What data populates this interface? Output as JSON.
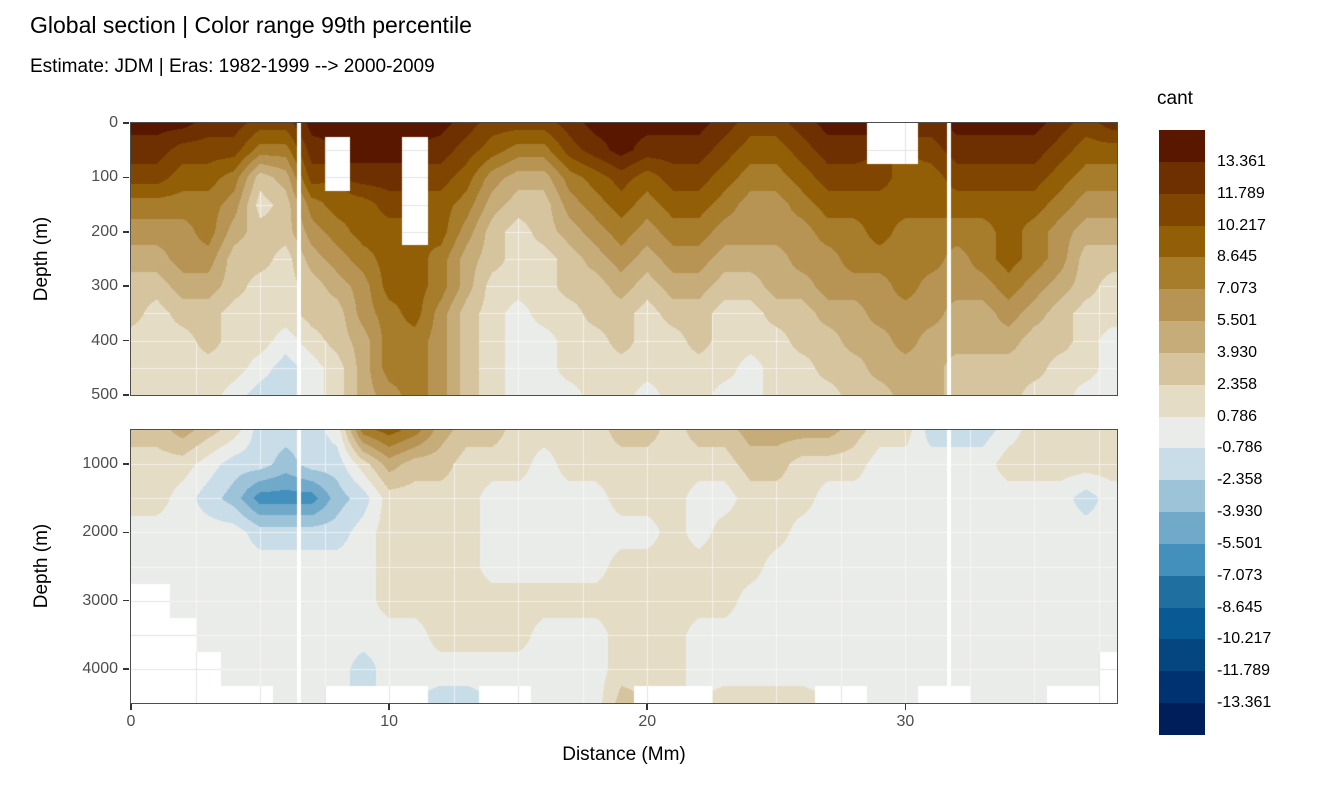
{
  "header": {
    "title": "Global section | Color range 99th percentile",
    "subtitle": "Estimate: JDM  | Eras: 1982-1999 --> 2000-2009"
  },
  "chart_data": {
    "type": "heatmap",
    "title": "Global section | Color range 99th percentile",
    "subtitle": "Estimate: JDM  | Eras: 1982-1999 --> 2000-2009",
    "xlabel": "Distance (Mm)",
    "ylabel": "Depth (m)",
    "x_range": [
      0,
      38.2
    ],
    "x_ticks": [
      0,
      10,
      20,
      30
    ],
    "x_grid_lines": [
      2.5,
      5,
      7.5,
      10,
      12.5,
      15,
      17.5,
      20,
      22.5,
      25,
      27.5,
      30,
      32.5,
      35,
      37.5
    ],
    "section_breaks_mm": [
      6.5,
      31.7
    ],
    "legend": {
      "title": "cant",
      "labels_top_down": [
        "13.361",
        "11.789",
        "10.217",
        "8.645",
        "7.073",
        "5.501",
        "3.930",
        "2.358",
        "0.786",
        "-0.786",
        "-2.358",
        "-3.930",
        "-5.501",
        "-7.073",
        "-8.645",
        "-10.217",
        "-11.789",
        "-13.361"
      ],
      "breaks_asc": [
        -13.361,
        -11.789,
        -10.217,
        -8.645,
        -7.073,
        -5.501,
        -3.93,
        -2.358,
        -0.786,
        0.786,
        2.358,
        3.93,
        5.501,
        7.073,
        8.645,
        10.217,
        11.789,
        13.361
      ],
      "colors_asc": [
        "#001E5A",
        "#003170",
        "#054580",
        "#075A94",
        "#1F6FA0",
        "#4390BC",
        "#70A9C9",
        "#9DC3D9",
        "#C9DDE8",
        "#EAECE9",
        "#E5DCC6",
        "#D5C49E",
        "#C6AC79",
        "#B79454",
        "#A77C2B",
        "#925F06",
        "#804500",
        "#6F3000",
        "#5A1700"
      ]
    },
    "colors": {
      "missing": "#FFFFFF",
      "grid_on_missing": "#E4E4E4",
      "panel_border": "#4d4d4d",
      "tick_text": "#4d4d4d",
      "section_break": "#FFFFFF"
    },
    "panels": [
      {
        "name": "upper",
        "depth_range": [
          0,
          500
        ],
        "depth_ticks": [
          0,
          100,
          200,
          300,
          400,
          500
        ],
        "depth_grid_lines": [
          50,
          100,
          150,
          200,
          250,
          300,
          350,
          400,
          450
        ],
        "x_start": 0,
        "x_step": 1,
        "depth_step": 50,
        "values": [
          [
            14,
            14,
            14,
            12.6,
            12.6,
            11,
            11,
            14,
            14,
            14,
            14,
            14,
            14,
            12.6,
            11,
            11,
            11,
            12.6,
            14,
            14,
            14,
            14,
            14,
            12.6,
            11,
            11,
            12.6,
            14,
            14,
            null,
            null,
            12.6,
            14,
            14,
            14,
            14,
            12.6,
            11,
            12.6
          ],
          [
            12.6,
            12.6,
            11,
            11,
            11,
            7.9,
            7.9,
            12.6,
            null,
            14,
            14,
            null,
            12.6,
            11,
            9.4,
            7.9,
            7.9,
            11,
            12.6,
            14,
            12.6,
            12.6,
            12.6,
            11,
            9.4,
            9.4,
            11,
            12.6,
            12.6,
            null,
            null,
            11,
            12.6,
            12.6,
            12.6,
            12.6,
            11,
            9.4,
            9.4
          ],
          [
            11,
            11,
            9.4,
            9.4,
            7.9,
            3.1,
            4.7,
            11,
            null,
            12.6,
            12.6,
            null,
            11,
            9.4,
            6.3,
            4.7,
            4.7,
            7.9,
            9.4,
            11,
            9.4,
            11,
            11,
            9.4,
            7.9,
            7.9,
            9.4,
            11,
            11,
            11,
            9.4,
            9.4,
            11,
            11,
            11,
            11,
            9.4,
            7.9,
            7.9
          ],
          [
            7.9,
            7.9,
            7.9,
            7.9,
            6.3,
            1.6,
            3.1,
            7.9,
            9.4,
            9.4,
            11,
            null,
            9.4,
            7.9,
            4.7,
            3.1,
            3.1,
            6.3,
            7.9,
            9.4,
            7.9,
            9.4,
            9.4,
            7.9,
            6.3,
            6.3,
            7.9,
            9.4,
            9.4,
            9.4,
            9.4,
            9.4,
            9.4,
            9.4,
            9.4,
            9.4,
            7.9,
            6.3,
            6.3
          ],
          [
            6.3,
            6.3,
            6.3,
            7.9,
            4.7,
            3.1,
            3.1,
            6.3,
            7.9,
            9.4,
            9.4,
            null,
            9.4,
            6.3,
            3.1,
            1.6,
            3.1,
            4.7,
            6.3,
            7.9,
            6.3,
            7.9,
            7.9,
            6.3,
            6.3,
            6.3,
            6.3,
            7.9,
            7.9,
            9.4,
            7.9,
            7.9,
            7.9,
            7.9,
            9.4,
            7.9,
            6.3,
            4.7,
            4.7
          ],
          [
            4.7,
            4.7,
            6.3,
            6.3,
            3.1,
            3.1,
            1.6,
            4.7,
            6.3,
            7.9,
            9.4,
            9.4,
            7.9,
            4.7,
            3.1,
            1.6,
            1.6,
            3.1,
            4.7,
            6.3,
            4.7,
            6.3,
            6.3,
            4.7,
            4.7,
            4.7,
            6.3,
            6.3,
            7.9,
            7.9,
            7.9,
            7.9,
            6.3,
            7.9,
            9.4,
            7.9,
            6.3,
            3.1,
            3.1
          ],
          [
            3.1,
            3.1,
            4.7,
            4.7,
            3.1,
            1.6,
            1.6,
            3.1,
            4.7,
            6.3,
            9.4,
            9.4,
            7.9,
            4.7,
            1.6,
            1.6,
            1.6,
            3.1,
            3.1,
            4.7,
            3.1,
            4.7,
            4.7,
            3.1,
            3.1,
            4.7,
            4.7,
            6.3,
            6.3,
            6.3,
            7.9,
            6.3,
            6.3,
            6.3,
            7.9,
            6.3,
            4.7,
            3.1,
            1.6
          ],
          [
            3.1,
            1.6,
            3.1,
            3.1,
            1.6,
            1.6,
            1.6,
            3.1,
            3.1,
            6.3,
            7.9,
            9.4,
            6.3,
            3.1,
            1.6,
            0,
            1.6,
            1.6,
            3.1,
            3.1,
            1.6,
            3.1,
            3.1,
            1.6,
            1.6,
            3.1,
            3.1,
            4.7,
            4.7,
            6.3,
            6.3,
            6.3,
            4.7,
            4.7,
            6.3,
            4.7,
            3.1,
            1.6,
            1.6
          ],
          [
            1.6,
            1.6,
            1.6,
            3.1,
            1.6,
            1.6,
            0,
            1.6,
            3.1,
            4.7,
            7.9,
            7.9,
            6.3,
            3.1,
            1.6,
            0,
            0,
            1.6,
            1.6,
            3.1,
            1.6,
            1.6,
            3.1,
            1.6,
            1.6,
            1.6,
            3.1,
            3.1,
            4.7,
            4.7,
            6.3,
            4.7,
            4.7,
            4.7,
            4.7,
            3.1,
            3.1,
            1.6,
            0
          ],
          [
            1.6,
            1.6,
            1.6,
            1.6,
            1.6,
            0,
            -1.6,
            0,
            1.6,
            4.7,
            7.9,
            7.9,
            6.3,
            3.1,
            1.6,
            0,
            0,
            1.6,
            1.6,
            1.6,
            1.6,
            1.6,
            1.6,
            1.6,
            0,
            1.6,
            1.6,
            3.1,
            3.1,
            4.7,
            4.7,
            4.7,
            3.1,
            3.1,
            3.1,
            3.1,
            1.6,
            1.6,
            0
          ],
          [
            1.6,
            1.6,
            1.6,
            1.6,
            0,
            -1.6,
            -1.6,
            0,
            1.6,
            4.7,
            6.3,
            7.9,
            6.3,
            3.1,
            1.6,
            0,
            0,
            0,
            1.6,
            1.6,
            0,
            1.6,
            1.6,
            0,
            0,
            1.6,
            1.6,
            1.6,
            3.1,
            3.1,
            4.7,
            4.7,
            3.1,
            3.1,
            3.1,
            1.6,
            1.6,
            0,
            0
          ]
        ]
      },
      {
        "name": "lower",
        "depth_range": [
          500,
          4500
        ],
        "depth_ticks": [
          1000,
          2000,
          3000,
          4000
        ],
        "depth_grid_lines": [
          1000,
          1500,
          2000,
          2500,
          3000,
          3500,
          4000
        ],
        "x_start": 0,
        "x_step": 1,
        "depth_step": 500,
        "values": [
          [
            3.1,
            3.1,
            4.7,
            3.1,
            1.6,
            -1.6,
            -1.6,
            -1.6,
            0,
            7.9,
            9.4,
            7.9,
            4.7,
            3.1,
            3.1,
            1.6,
            1.6,
            1.6,
            1.6,
            3.1,
            3.1,
            1.6,
            3.1,
            3.1,
            4.7,
            4.7,
            4.7,
            4.7,
            3.1,
            1.6,
            1.6,
            -1.6,
            -1.6,
            -1.6,
            0,
            1.6,
            1.6,
            1.6,
            1.6
          ],
          [
            1.6,
            1.6,
            1.6,
            0,
            -1.6,
            -1.6,
            -3.1,
            -1.6,
            -1.6,
            1.6,
            4.7,
            3.1,
            3.1,
            1.6,
            1.6,
            1.6,
            0,
            1.6,
            1.6,
            1.6,
            1.6,
            1.6,
            1.6,
            1.6,
            3.1,
            3.1,
            1.6,
            1.6,
            1.6,
            0,
            0,
            0,
            0,
            0,
            1.6,
            1.6,
            1.6,
            1.6,
            1.6
          ],
          [
            1.6,
            1.6,
            0,
            -1.6,
            -3.1,
            -6.3,
            -6.3,
            -6.3,
            -3.1,
            -1.6,
            1.6,
            1.6,
            1.6,
            1.6,
            0,
            0,
            0,
            0,
            0,
            1.6,
            1.6,
            1.6,
            0,
            0,
            1.6,
            1.6,
            1.6,
            0,
            0,
            0,
            0,
            0,
            0,
            0,
            0,
            0,
            0,
            -1.6,
            0
          ],
          [
            0,
            0,
            0,
            0,
            0,
            -1.6,
            -1.6,
            -1.6,
            -1.6,
            0,
            1.6,
            1.6,
            1.6,
            1.6,
            0,
            0,
            0,
            0,
            0,
            0,
            0,
            1.6,
            0,
            1.6,
            1.6,
            1.6,
            0,
            0,
            0,
            0,
            0,
            0,
            0,
            0,
            0,
            0,
            0,
            0,
            0
          ],
          [
            0,
            0,
            0,
            0,
            0,
            0,
            0,
            0,
            0,
            0,
            1.6,
            1.6,
            1.6,
            1.6,
            0,
            0,
            0,
            0,
            0,
            1.6,
            1.6,
            1.6,
            1.6,
            1.6,
            1.6,
            0,
            0,
            0,
            0,
            0,
            0,
            0,
            0,
            0,
            0,
            0,
            0,
            0,
            0
          ],
          [
            null,
            null,
            0,
            0,
            0,
            0,
            0,
            0,
            0,
            0,
            1.6,
            1.6,
            1.6,
            1.6,
            1.6,
            1.6,
            1.6,
            1.6,
            1.6,
            1.6,
            1.6,
            1.6,
            1.6,
            1.6,
            0,
            0,
            0,
            0,
            0,
            0,
            0,
            0,
            0,
            0,
            0,
            0,
            0,
            0,
            0
          ],
          [
            null,
            null,
            null,
            0,
            0,
            0,
            0,
            0,
            0,
            0,
            0,
            0,
            1.6,
            1.6,
            1.6,
            1.6,
            0,
            0,
            0,
            1.6,
            1.6,
            1.6,
            0,
            0,
            0,
            0,
            0,
            0,
            0,
            0,
            0,
            0,
            0,
            0,
            0,
            0,
            0,
            0,
            0
          ],
          [
            null,
            null,
            null,
            null,
            0,
            0,
            0,
            0,
            0,
            -1.6,
            0,
            0,
            0,
            0,
            0,
            0,
            0,
            0,
            0,
            1.6,
            1.6,
            1.6,
            0,
            0,
            0,
            0,
            0,
            0,
            0,
            0,
            0,
            0,
            0,
            0,
            0,
            0,
            0,
            0,
            null
          ],
          [
            null,
            null,
            null,
            null,
            null,
            null,
            0,
            0,
            null,
            null,
            null,
            null,
            -1.6,
            -1.6,
            null,
            null,
            0,
            0,
            0,
            3.1,
            null,
            null,
            null,
            1.6,
            1.6,
            1.6,
            1.6,
            null,
            null,
            0,
            0,
            null,
            null,
            0,
            0,
            0,
            null,
            null,
            null
          ]
        ]
      }
    ]
  }
}
